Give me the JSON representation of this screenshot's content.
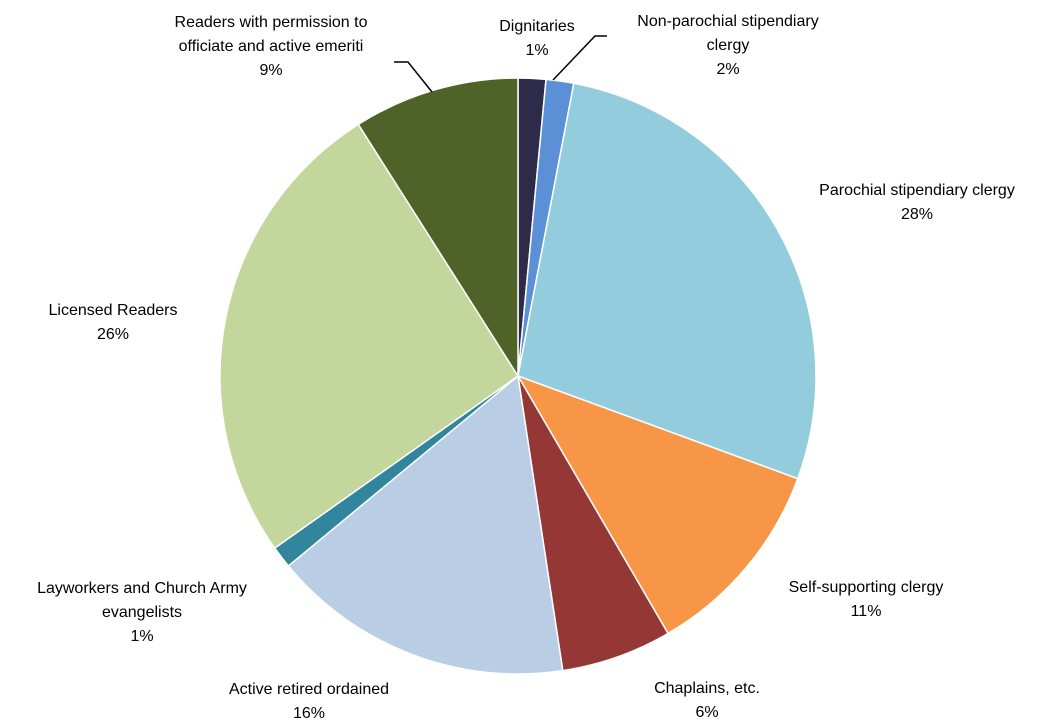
{
  "chart_data": {
    "type": "pie",
    "title": "",
    "slices": [
      {
        "name": "Dignitaries",
        "label_lines": [
          "Dignitaries"
        ],
        "pct_label": "1%",
        "value": 1.5,
        "color": "#2e2a4a"
      },
      {
        "name": "Non-parochial stipendiary clergy",
        "label_lines": [
          "Non-parochial stipendiary",
          "clergy"
        ],
        "pct_label": "2%",
        "value": 1.5,
        "color": "#5b8fd6"
      },
      {
        "name": "Parochial stipendiary clergy",
        "label_lines": [
          "Parochial stipendiary clergy"
        ],
        "pct_label": "28%",
        "value": 27.6,
        "color": "#93cddd"
      },
      {
        "name": "Self-supporting clergy",
        "label_lines": [
          "Self-supporting clergy"
        ],
        "pct_label": "11%",
        "value": 11.0,
        "color": "#f79646"
      },
      {
        "name": "Chaplains, etc.",
        "label_lines": [
          "Chaplains, etc."
        ],
        "pct_label": "6%",
        "value": 6.0,
        "color": "#953735"
      },
      {
        "name": "Active retired ordained",
        "label_lines": [
          "Active retired ordained"
        ],
        "pct_label": "16%",
        "value": 16.4,
        "color": "#b9cde5"
      },
      {
        "name": "Layworkers and Church Army evangelists",
        "label_lines": [
          "Layworkers and Church Army",
          "evangelists"
        ],
        "pct_label": "1%",
        "value": 1.2,
        "color": "#31859c"
      },
      {
        "name": "Licensed Readers",
        "label_lines": [
          "Licensed Readers"
        ],
        "pct_label": "26%",
        "value": 25.8,
        "color": "#c3d69b"
      },
      {
        "name": "Readers with permission to officiate and active emeriti",
        "label_lines": [
          "Readers with permission to",
          "officiate and active emeriti"
        ],
        "pct_label": "9%",
        "value": 9.0,
        "color": "#4f6228"
      }
    ],
    "start_angle_deg": 0,
    "direction": "clockwise"
  }
}
